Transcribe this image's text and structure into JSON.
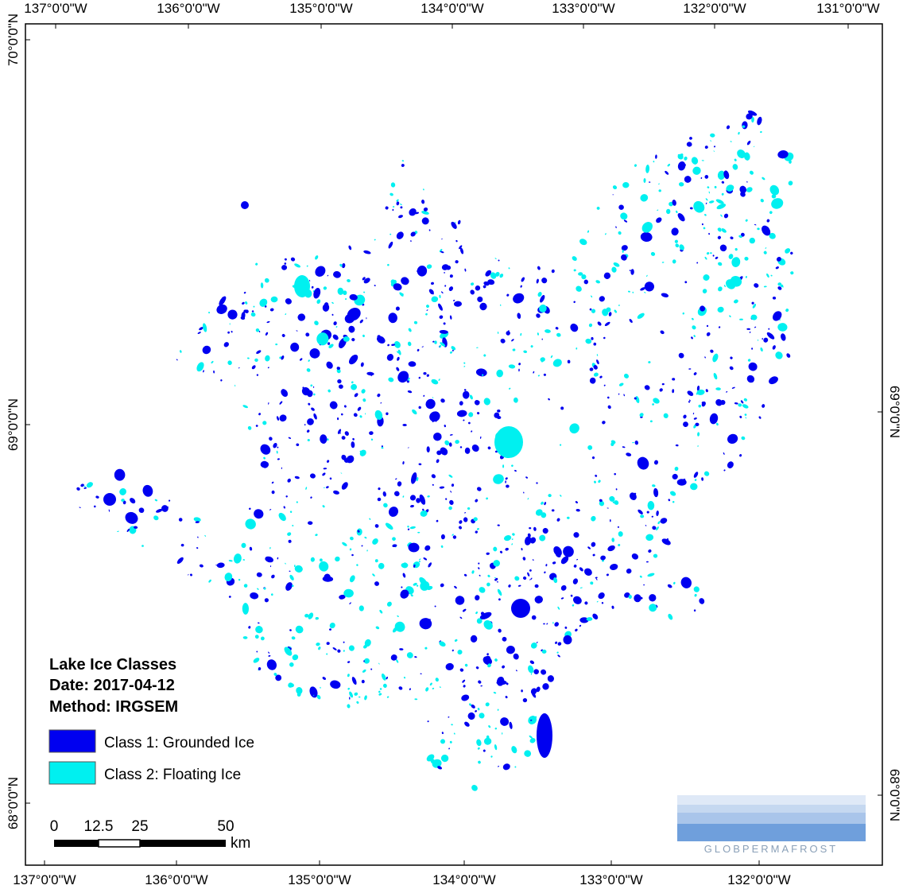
{
  "map": {
    "top_labels": [
      "137°0'0\"W",
      "136°0'0\"W",
      "135°0'0\"W",
      "134°0'0\"W",
      "133°0'0\"W",
      "132°0'0\"W",
      "131°0'0\"W"
    ],
    "bottom_labels": [
      "137°0'0\"W",
      "136°0'0\"W",
      "135°0'0\"W",
      "134°0'0\"W",
      "133°0'0\"W",
      "132°0'0\"W"
    ],
    "left_labels": [
      "70°0'0\"N",
      "69°0'0\"N",
      "68°0'0\"N"
    ],
    "right_labels": [
      "69°0'0\"N",
      "68°0'0\"N"
    ],
    "legend": {
      "title_lines": [
        "Lake Ice Classes",
        "Date: 2017-04-12",
        "Method: IRGSEM"
      ],
      "items": [
        {
          "label": "Class 1: Grounded Ice",
          "color": "#0000f0"
        },
        {
          "label": "Class 2: Floating Ice",
          "color": "#00f0f0"
        }
      ]
    },
    "scale_bar": {
      "labels": [
        "0",
        "12.5",
        "25",
        "50"
      ],
      "unit": "km"
    },
    "logo_text": "GLOBPERMAFROST"
  }
}
